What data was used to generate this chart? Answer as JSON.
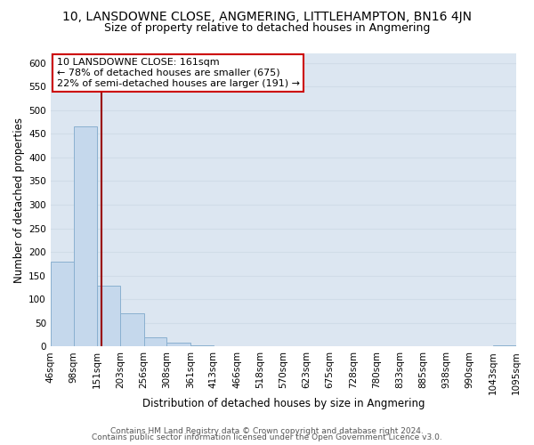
{
  "title_line1": "10, LANSDOWNE CLOSE, ANGMERING, LITTLEHAMPTON, BN16 4JN",
  "title_line2": "Size of property relative to detached houses in Angmering",
  "xlabel": "Distribution of detached houses by size in Angmering",
  "ylabel": "Number of detached properties",
  "bin_edges": [
    46,
    98,
    151,
    203,
    256,
    308,
    361,
    413,
    466,
    518,
    570,
    623,
    675,
    728,
    780,
    833,
    885,
    938,
    990,
    1043,
    1095
  ],
  "bin_labels": [
    "46sqm",
    "98sqm",
    "151sqm",
    "203sqm",
    "256sqm",
    "308sqm",
    "361sqm",
    "413sqm",
    "466sqm",
    "518sqm",
    "570sqm",
    "623sqm",
    "675sqm",
    "728sqm",
    "780sqm",
    "833sqm",
    "885sqm",
    "938sqm",
    "990sqm",
    "1043sqm",
    "1095sqm"
  ],
  "bar_heights": [
    180,
    465,
    128,
    70,
    20,
    8,
    2,
    0,
    0,
    0,
    0,
    0,
    0,
    0,
    0,
    0,
    0,
    0,
    0,
    2
  ],
  "bar_color": "#c5d8ec",
  "bar_edge_color": "#8ab0d0",
  "grid_color": "#d0dce8",
  "bg_color": "#dce6f1",
  "reference_line_x": 161,
  "reference_line_color": "#990000",
  "annotation_box_text": "10 LANSDOWNE CLOSE: 161sqm\n← 78% of detached houses are smaller (675)\n22% of semi-detached houses are larger (191) →",
  "annotation_box_facecolor": "#ffffff",
  "annotation_box_edgecolor": "#cc0000",
  "ylim": [
    0,
    620
  ],
  "yticks": [
    0,
    50,
    100,
    150,
    200,
    250,
    300,
    350,
    400,
    450,
    500,
    550,
    600
  ],
  "footer_line1": "Contains HM Land Registry data © Crown copyright and database right 2024.",
  "footer_line2": "Contains public sector information licensed under the Open Government Licence v3.0.",
  "title_fontsize": 10,
  "subtitle_fontsize": 9,
  "axis_label_fontsize": 8.5,
  "tick_fontsize": 7.5,
  "annotation_fontsize": 8,
  "footer_fontsize": 6.5
}
